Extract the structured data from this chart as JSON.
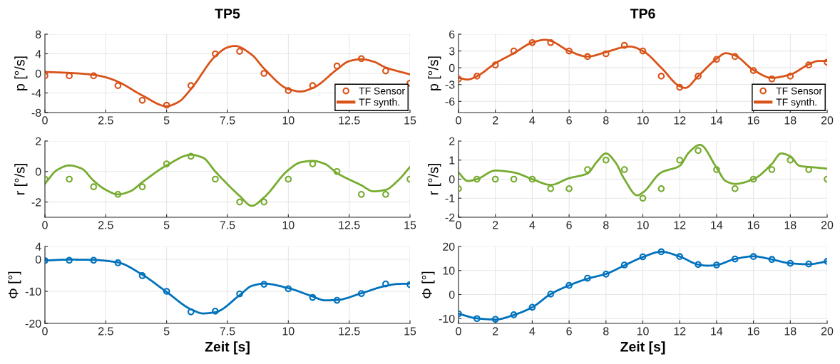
{
  "chart_data": [
    {
      "type": "line",
      "title": "TP5",
      "ylabel": "p [°/s]",
      "xlim": [
        0,
        15
      ],
      "xticks": [
        0,
        2.5,
        5,
        7.5,
        10,
        12.5,
        15
      ],
      "ylim": [
        -8,
        8
      ],
      "yticks": [
        -8,
        -4,
        0,
        4,
        8
      ],
      "grid": true,
      "legend": "bottom right",
      "series": [
        {
          "type": "scatter",
          "name": "TF Sensor",
          "color": "#d95319",
          "marker": "circle",
          "x": [
            0,
            1,
            2,
            3,
            4,
            5,
            6,
            7,
            8,
            9,
            10,
            11,
            12,
            13,
            14,
            15
          ],
          "values": [
            -0.5,
            -0.5,
            -0.5,
            -2.5,
            -5.5,
            -6.5,
            -2.5,
            4,
            4.5,
            0,
            -3.5,
            -2.5,
            1.5,
            3,
            0.5,
            -2
          ]
        },
        {
          "type": "line",
          "name": "TF synth.",
          "color": "#d95319",
          "line_style": "solid",
          "x": [
            0,
            1,
            2,
            2.5,
            3,
            4,
            5,
            5.5,
            6,
            7,
            7.5,
            7.8,
            8.5,
            9,
            10,
            10.5,
            11,
            12,
            12.5,
            13,
            13.5,
            14,
            15
          ],
          "values": [
            0.3,
            0.1,
            -0.3,
            -0.8,
            -1.7,
            -4.5,
            -6.7,
            -5.8,
            -3.2,
            3.5,
            5.3,
            5.6,
            3.8,
            1,
            -3.2,
            -3.7,
            -3.0,
            0.8,
            2.5,
            2.9,
            2.4,
            1.2,
            -0.2
          ]
        }
      ]
    },
    {
      "type": "line",
      "title": "TP6",
      "ylabel": "p [°/s]",
      "xlim": [
        0,
        20
      ],
      "xticks": [
        0,
        2,
        4,
        6,
        8,
        10,
        12,
        14,
        16,
        18,
        20
      ],
      "ylim": [
        -8,
        6
      ],
      "yticks": [
        -6,
        -3,
        0,
        3,
        6
      ],
      "grid": true,
      "legend": "bottom right",
      "series": [
        {
          "type": "scatter",
          "name": "TF Sensor",
          "color": "#d95319",
          "marker": "circle",
          "x": [
            0,
            1,
            2,
            3,
            4,
            5,
            6,
            7,
            8,
            9,
            10,
            11,
            12,
            13,
            14,
            15,
            16,
            17,
            18,
            19,
            20
          ],
          "values": [
            -2,
            -1.5,
            0.5,
            3,
            4.5,
            4.5,
            3,
            2,
            2.5,
            4,
            3,
            -1.5,
            -3.5,
            -1.5,
            1.5,
            2,
            -0.5,
            -2,
            -1.5,
            0.5,
            1
          ]
        },
        {
          "type": "line",
          "name": "TF synth.",
          "color": "#d95319",
          "line_style": "solid",
          "x": [
            0,
            0.5,
            1,
            2,
            3,
            4,
            4.7,
            5,
            6,
            7,
            8,
            9,
            9.3,
            10,
            11,
            12,
            12.3,
            13,
            14,
            14.5,
            15,
            16,
            17,
            18,
            19,
            19.5,
            20
          ],
          "values": [
            -1.8,
            -2.1,
            -1.5,
            0.8,
            2.6,
            4.5,
            5.0,
            4.8,
            3.0,
            2.0,
            2.8,
            3.7,
            3.8,
            3.0,
            0,
            -3.3,
            -3.6,
            -1.5,
            1.6,
            2.6,
            2.2,
            -0.4,
            -1.8,
            -1.2,
            0.6,
            1.2,
            1.2
          ]
        }
      ]
    },
    {
      "type": "line",
      "ylabel": "r [°/s]",
      "xlim": [
        0,
        15
      ],
      "xticks": [
        0,
        2.5,
        5,
        7.5,
        10,
        12.5,
        15
      ],
      "ylim": [
        -3,
        2
      ],
      "yticks": [
        -2,
        0,
        2
      ],
      "grid": true,
      "series": [
        {
          "type": "scatter",
          "color": "#77ac30",
          "marker": "circle",
          "x": [
            0,
            1,
            2,
            3,
            4,
            5,
            6,
            7,
            8,
            9,
            10,
            11,
            12,
            13,
            14,
            15
          ],
          "values": [
            -0.5,
            -0.5,
            -1,
            -1.5,
            -1,
            0.5,
            1,
            -0.5,
            -2,
            -2,
            -0.5,
            0.5,
            0,
            -1.5,
            -1.5,
            -0.5
          ]
        },
        {
          "type": "line",
          "color": "#77ac30",
          "line_style": "solid",
          "x": [
            0,
            0.5,
            1,
            1.5,
            2,
            2.5,
            3,
            3.5,
            4,
            5,
            6,
            6.5,
            7,
            8,
            8.5,
            9,
            10,
            10.5,
            11,
            11.5,
            12,
            13,
            13.5,
            14,
            14.5,
            15
          ],
          "values": [
            -0.8,
            0.1,
            0.4,
            0.2,
            -0.6,
            -1.2,
            -1.5,
            -1.3,
            -0.7,
            0.4,
            1.1,
            0.9,
            0.0,
            -1.6,
            -2.25,
            -1.7,
            0.1,
            0.6,
            0.7,
            0.5,
            -0.1,
            -0.9,
            -1.3,
            -1.2,
            -0.6,
            0.3
          ]
        }
      ]
    },
    {
      "type": "line",
      "ylabel": "r [°/s]",
      "xlim": [
        0,
        20
      ],
      "xticks": [
        0,
        2,
        4,
        6,
        8,
        10,
        12,
        14,
        16,
        18,
        20
      ],
      "ylim": [
        -2,
        2
      ],
      "yticks": [
        -2,
        -1,
        0,
        1,
        2
      ],
      "grid": true,
      "series": [
        {
          "type": "scatter",
          "color": "#77ac30",
          "marker": "circle",
          "x": [
            0,
            1,
            2,
            3,
            4,
            5,
            6,
            7,
            8,
            9,
            10,
            11,
            12,
            13,
            14,
            15,
            16,
            17,
            18,
            19,
            20
          ],
          "values": [
            -0.5,
            0,
            0,
            0,
            0,
            -0.5,
            -0.5,
            0.5,
            1,
            0.5,
            -1,
            -0.5,
            1,
            1.5,
            0.5,
            -0.5,
            0,
            0.5,
            1,
            0.5,
            0
          ]
        },
        {
          "type": "line",
          "color": "#77ac30",
          "line_style": "solid",
          "x": [
            0,
            0.5,
            1,
            2,
            3,
            4,
            5,
            6,
            7,
            7.5,
            8,
            8.5,
            9,
            9.7,
            10,
            11,
            12,
            12.5,
            13.1,
            14,
            14.5,
            15,
            16,
            17,
            17.5,
            18,
            18.5,
            19.5,
            20
          ],
          "values": [
            0.35,
            -0.1,
            0,
            0.45,
            0.35,
            0,
            -0.3,
            0.05,
            0.3,
            0.9,
            1.35,
            0.9,
            0,
            -0.85,
            -0.7,
            0.35,
            0.7,
            1.4,
            1.8,
            0.6,
            -0.1,
            -0.25,
            0.0,
            0.8,
            1.35,
            1.2,
            0.7,
            0.6,
            0.55
          ]
        }
      ]
    },
    {
      "type": "line",
      "xlabel": "Zeit [s]",
      "ylabel": "Φ [°]",
      "xlim": [
        0,
        15
      ],
      "xticks": [
        0,
        2.5,
        5,
        7.5,
        10,
        12.5,
        15
      ],
      "ylim": [
        -20,
        4
      ],
      "yticks": [
        -20,
        -10,
        0,
        4
      ],
      "grid": true,
      "series": [
        {
          "type": "scatter",
          "color": "#0072bd",
          "marker": "circle",
          "x": [
            0,
            1,
            2,
            3,
            4,
            5,
            6,
            7,
            8,
            9,
            10,
            11,
            12,
            13,
            14,
            15
          ],
          "values": [
            -0.4,
            -0.3,
            -0.3,
            -1.1,
            -5.1,
            -10,
            -16.4,
            -16.2,
            -10.8,
            -7.8,
            -9.2,
            -11.9,
            -12.8,
            -10.7,
            -7.7,
            -7.9
          ]
        },
        {
          "type": "line",
          "color": "#0072bd",
          "line_style": "solid",
          "x": [
            0,
            1,
            2,
            3,
            4,
            5,
            6,
            6.5,
            7,
            8,
            8.5,
            9,
            10,
            11,
            11.5,
            12,
            13,
            14,
            14.5,
            15
          ],
          "values": [
            -0.4,
            -0.1,
            -0.2,
            -1.0,
            -4.8,
            -10.2,
            -15.6,
            -16.9,
            -16.5,
            -11.2,
            -8.3,
            -7.6,
            -9.0,
            -11.6,
            -12.8,
            -12.7,
            -10.6,
            -8.3,
            -7.7,
            -7.6
          ]
        }
      ]
    },
    {
      "type": "line",
      "xlabel": "Zeit [s]",
      "ylabel": "Φ [°]",
      "xlim": [
        0,
        20
      ],
      "xticks": [
        0,
        2,
        4,
        6,
        8,
        10,
        12,
        14,
        16,
        18,
        20
      ],
      "ylim": [
        -12,
        20
      ],
      "yticks": [
        -10,
        0,
        10,
        20
      ],
      "grid": true,
      "series": [
        {
          "type": "scatter",
          "color": "#0072bd",
          "marker": "circle",
          "x": [
            0,
            1,
            2,
            3,
            4,
            5,
            6,
            7,
            8,
            9,
            10,
            11,
            12,
            13,
            14,
            15,
            16,
            17,
            18,
            19,
            20
          ],
          "values": [
            -8,
            -10,
            -10.3,
            -8.4,
            -5.3,
            0.2,
            3.8,
            6.8,
            8.5,
            12.3,
            15.7,
            17.8,
            15.8,
            12.5,
            12.3,
            14.8,
            15.8,
            14.6,
            13,
            12.7,
            13.8
          ]
        },
        {
          "type": "line",
          "color": "#0072bd",
          "line_style": "solid",
          "x": [
            0,
            1,
            2,
            3,
            4,
            5,
            6,
            7,
            8,
            9,
            10,
            11,
            12,
            13,
            13.5,
            14,
            15,
            16,
            17,
            18,
            19,
            20
          ],
          "values": [
            -8,
            -9.9,
            -10.4,
            -8.5,
            -5.3,
            0.2,
            3.8,
            6.6,
            8.6,
            12.1,
            15.6,
            17.8,
            15.8,
            12.5,
            12,
            12.3,
            14.8,
            15.9,
            14.6,
            13,
            12.6,
            13.8
          ]
        }
      ]
    }
  ]
}
